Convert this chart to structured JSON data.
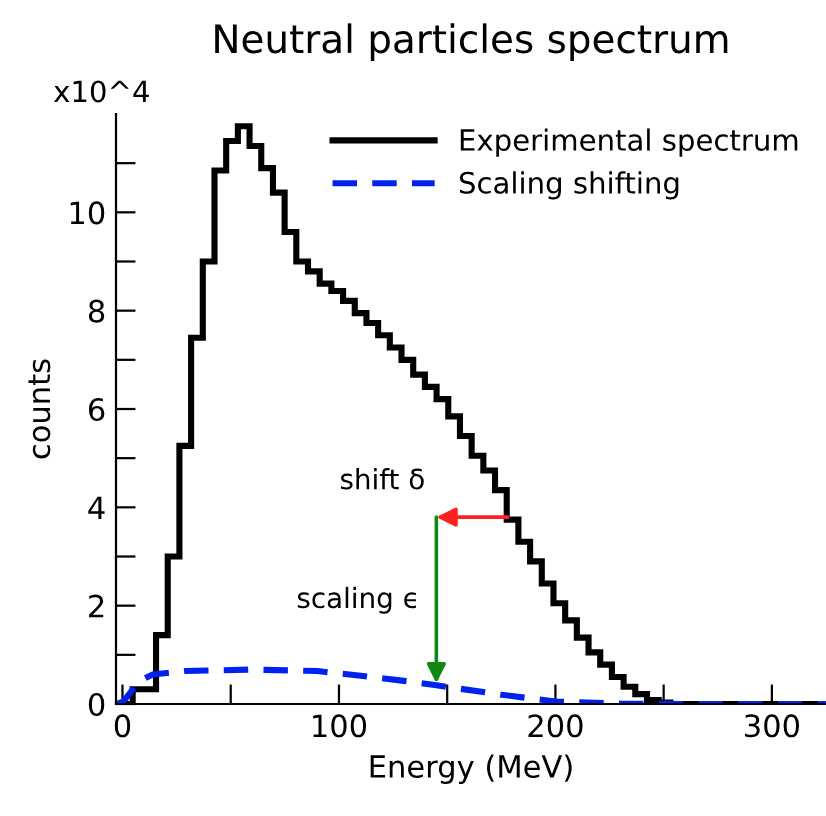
{
  "chart_data": {
    "type": "histogram",
    "title": "Neutral particles spectrum",
    "xlabel": "Energy (MeV)",
    "ylabel": "counts",
    "bins": [
      -0.7,
      4.7,
      10.1,
      15.5,
      20.9,
      26.3,
      31.7,
      37.1,
      42.5,
      47.9,
      53.3,
      58.7,
      64.1,
      69.5,
      74.9,
      80.3,
      85.7,
      91.1,
      96.5,
      101.9,
      107.3,
      112.7,
      118.1,
      123.5,
      128.9,
      134.3,
      139.7,
      145.1,
      150.5,
      155.9,
      161.3,
      166.7,
      172.1,
      177.5,
      182.9,
      188.3,
      193.7,
      199.1,
      204.5,
      209.9,
      215.3,
      220.7,
      226.1,
      231.5,
      236.9,
      242.3,
      247.7,
      253.1,
      258.5,
      263.9,
      269.3,
      274.7,
      280.1,
      285.5,
      290.9,
      296.3,
      301.7,
      307.1,
      312.5,
      317.9,
      323.3
    ],
    "series": [
      {
        "name": "Experimental spectrum",
        "color": "#000000",
        "values": [
          0,
          0.3,
          0.3,
          1.4,
          3.0,
          5.25,
          7.45,
          9.0,
          10.85,
          11.45,
          11.75,
          11.35,
          10.9,
          10.4,
          9.6,
          9.0,
          8.8,
          8.55,
          8.4,
          8.2,
          7.95,
          7.75,
          7.5,
          7.25,
          7.0,
          6.7,
          6.45,
          6.2,
          5.85,
          5.45,
          5.05,
          4.75,
          4.35,
          3.75,
          3.3,
          2.9,
          2.45,
          2.05,
          1.7,
          1.35,
          1.05,
          0.8,
          0.55,
          0.35,
          0.2,
          0.08,
          0.03,
          0,
          0,
          0,
          0,
          0,
          0,
          0,
          0,
          0,
          0,
          0,
          0,
          0
        ]
      },
      {
        "name": "Scaling shifting",
        "type": "line",
        "line_style": "dashed",
        "color": "#0022ee",
        "x": [
          -2.7,
          0.3,
          7.9,
          14,
          29,
          59.6,
          90,
          111,
          130,
          145,
          175,
          200,
          230,
          260,
          325
        ],
        "values": [
          0,
          0.05,
          0.47,
          0.6,
          0.67,
          0.7,
          0.67,
          0.57,
          0.47,
          0.38,
          0.19,
          0.05,
          0.01,
          0,
          0
        ]
      }
    ],
    "xlim": [
      -3,
      325
    ],
    "ylim": [
      0,
      12
    ],
    "xticks": [
      0,
      {
        "value": 50,
        "label": null
      },
      100,
      {
        "value": 150,
        "label": null
      },
      200,
      {
        "value": 250,
        "label": null
      },
      300
    ],
    "yticks": [
      0,
      {
        "value": 1,
        "label": null
      },
      2,
      {
        "value": 3,
        "label": null
      },
      4,
      {
        "value": 5,
        "label": null
      },
      6,
      {
        "value": 7,
        "label": null
      },
      8,
      {
        "value": 9,
        "label": null
      },
      10,
      {
        "value": 11,
        "label": null
      }
    ],
    "legend": "top right",
    "grid": false,
    "annotations": [
      "x10^4",
      {
        "text": "shift δ",
        "x": 178,
        "y": 3.8
      },
      {
        "text": "scaling ϵ",
        "x": 145,
        "y": 0.42
      }
    ]
  }
}
